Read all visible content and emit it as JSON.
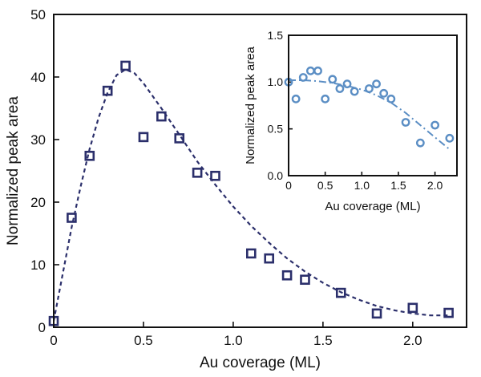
{
  "chart_data": [
    {
      "id": "main",
      "type": "scatter",
      "xlabel": "Au coverage (ML)",
      "ylabel": "Normalized peak area",
      "xlim": [
        0,
        2.3
      ],
      "ylim": [
        0,
        50
      ],
      "xticks": [
        0,
        0.5,
        1.0,
        1.5,
        2.0
      ],
      "xtick_labels": [
        "0",
        "0.5",
        "1.0",
        "1.5",
        "2.0"
      ],
      "yticks": [
        0,
        10,
        20,
        30,
        40,
        50
      ],
      "ytick_labels": [
        "0",
        "10",
        "20",
        "30",
        "40",
        "50"
      ],
      "marker": "open-square",
      "color": "#2b2f6b",
      "points": [
        {
          "x": 0.0,
          "y": 1.0
        },
        {
          "x": 0.1,
          "y": 17.5
        },
        {
          "x": 0.2,
          "y": 27.4
        },
        {
          "x": 0.3,
          "y": 37.8
        },
        {
          "x": 0.4,
          "y": 41.8
        },
        {
          "x": 0.5,
          "y": 30.4
        },
        {
          "x": 0.6,
          "y": 33.7
        },
        {
          "x": 0.7,
          "y": 30.2
        },
        {
          "x": 0.8,
          "y": 24.7
        },
        {
          "x": 0.9,
          "y": 24.2
        },
        {
          "x": 1.1,
          "y": 11.8
        },
        {
          "x": 1.2,
          "y": 11.0
        },
        {
          "x": 1.3,
          "y": 8.3
        },
        {
          "x": 1.4,
          "y": 7.6
        },
        {
          "x": 1.6,
          "y": 5.5
        },
        {
          "x": 1.8,
          "y": 2.2
        },
        {
          "x": 2.0,
          "y": 3.1
        },
        {
          "x": 2.2,
          "y": 2.3
        }
      ],
      "fit": {
        "style": "dashed",
        "color": "#2b2f6b",
        "points": [
          [
            0.0,
            1.0
          ],
          [
            0.05,
            8.5
          ],
          [
            0.1,
            16.0
          ],
          [
            0.15,
            22.5
          ],
          [
            0.2,
            28.5
          ],
          [
            0.25,
            33.5
          ],
          [
            0.3,
            37.5
          ],
          [
            0.35,
            40.3
          ],
          [
            0.4,
            41.2
          ],
          [
            0.45,
            40.6
          ],
          [
            0.5,
            39.0
          ],
          [
            0.6,
            35.0
          ],
          [
            0.7,
            30.8
          ],
          [
            0.8,
            26.5
          ],
          [
            0.9,
            22.8
          ],
          [
            1.0,
            19.3
          ],
          [
            1.1,
            16.2
          ],
          [
            1.2,
            13.5
          ],
          [
            1.3,
            11.0
          ],
          [
            1.4,
            8.9
          ],
          [
            1.5,
            7.1
          ],
          [
            1.6,
            5.6
          ],
          [
            1.7,
            4.4
          ],
          [
            1.8,
            3.4
          ],
          [
            1.9,
            2.7
          ],
          [
            2.0,
            2.2
          ],
          [
            2.1,
            1.9
          ],
          [
            2.2,
            1.9
          ]
        ]
      }
    },
    {
      "id": "inset",
      "type": "scatter",
      "xlabel": "Au coverage (ML)",
      "ylabel": "Normalized peak area",
      "xlim": [
        0,
        2.3
      ],
      "ylim": [
        0,
        1.5
      ],
      "xticks": [
        0,
        0.5,
        1.0,
        1.5,
        2.0
      ],
      "xtick_labels": [
        "0",
        "0.5",
        "1.0",
        "1.5",
        "2.0"
      ],
      "yticks": [
        0,
        0.5,
        1.0,
        1.5
      ],
      "ytick_labels": [
        "0.0",
        "0.5",
        "1.0",
        "1.5"
      ],
      "marker": "open-circle",
      "color": "#5b8ec4",
      "points": [
        {
          "x": 0.0,
          "y": 1.0
        },
        {
          "x": 0.1,
          "y": 0.82
        },
        {
          "x": 0.2,
          "y": 1.05
        },
        {
          "x": 0.3,
          "y": 1.12
        },
        {
          "x": 0.4,
          "y": 1.12
        },
        {
          "x": 0.5,
          "y": 0.82
        },
        {
          "x": 0.6,
          "y": 1.03
        },
        {
          "x": 0.7,
          "y": 0.93
        },
        {
          "x": 0.8,
          "y": 0.98
        },
        {
          "x": 0.9,
          "y": 0.9
        },
        {
          "x": 1.1,
          "y": 0.93
        },
        {
          "x": 1.2,
          "y": 0.98
        },
        {
          "x": 1.3,
          "y": 0.88
        },
        {
          "x": 1.4,
          "y": 0.82
        },
        {
          "x": 1.6,
          "y": 0.57
        },
        {
          "x": 1.8,
          "y": 0.35
        },
        {
          "x": 2.0,
          "y": 0.54
        },
        {
          "x": 2.2,
          "y": 0.4
        }
      ],
      "fit": {
        "style": "dash-dot",
        "color": "#5b8ec4",
        "points": [
          [
            0.0,
            1.02
          ],
          [
            0.2,
            1.02
          ],
          [
            0.4,
            1.01
          ],
          [
            0.6,
            0.99
          ],
          [
            0.8,
            0.96
          ],
          [
            1.0,
            0.92
          ],
          [
            1.2,
            0.86
          ],
          [
            1.4,
            0.78
          ],
          [
            1.6,
            0.67
          ],
          [
            1.8,
            0.54
          ],
          [
            2.0,
            0.41
          ],
          [
            2.2,
            0.28
          ]
        ]
      }
    }
  ]
}
